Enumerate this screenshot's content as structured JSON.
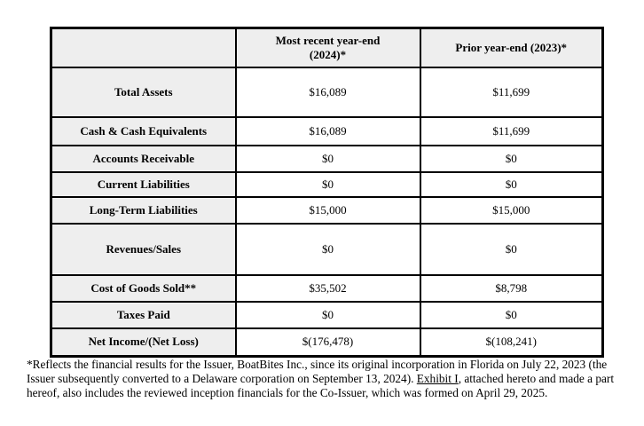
{
  "colors": {
    "page_bg": "#ffffff",
    "header_bg": "#eeeeee",
    "cell_bg": "#ffffff",
    "border": "#000000",
    "text": "#000000"
  },
  "table": {
    "columns": [
      "",
      "Most recent year-end\n(2024)*",
      "Prior year-end (2023)*"
    ],
    "rows": [
      {
        "label": "Total Assets",
        "most_recent_2024": "$16,089",
        "prior_2023": "$11,699"
      },
      {
        "label": "Cash & Cash Equivalents",
        "most_recent_2024": "$16,089",
        "prior_2023": "$11,699"
      },
      {
        "label": "Accounts Receivable",
        "most_recent_2024": "$0",
        "prior_2023": "$0"
      },
      {
        "label": "Current Liabilities",
        "most_recent_2024": "$0",
        "prior_2023": "$0"
      },
      {
        "label": "Long-Term Liabilities",
        "most_recent_2024": "$15,000",
        "prior_2023": "$15,000"
      },
      {
        "label": "Revenues/Sales",
        "most_recent_2024": "$0",
        "prior_2023": "$0"
      },
      {
        "label": "Cost of Goods Sold**",
        "most_recent_2024": "$35,502",
        "prior_2023": "$8,798"
      },
      {
        "label": "Taxes Paid",
        "most_recent_2024": "$0",
        "prior_2023": "$0"
      },
      {
        "label": "Net Income/(Net Loss)",
        "most_recent_2024": "$(176,478)",
        "prior_2023": "$(108,241)"
      }
    ]
  },
  "footnote": {
    "part1": "*Reflects the financial results for the Issuer, BoatBites Inc., since its original incorporation in Florida on July 22, 2023 (the Issuer subsequently converted to a Delaware corporation on September 13, 2024). ",
    "exhibit_link": "Exhibit I",
    "part2": ", attached hereto and made a part hereof, also includes the reviewed inception financials for the Co-Issuer, which was formed on April 29, 2025."
  }
}
